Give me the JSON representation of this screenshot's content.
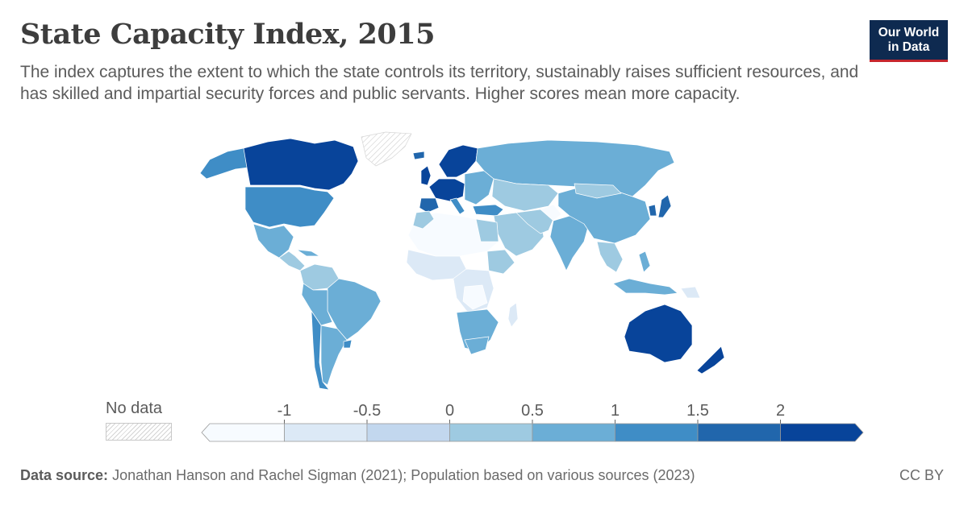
{
  "header": {
    "title": "State Capacity Index, 2015",
    "subtitle": "The index captures the extent to which the state controls its territory, sustainably raises sufficient resources, and has skilled and impartial security forces and public servants. Higher scores mean more capacity."
  },
  "logo": {
    "line1": "Our World",
    "line2": "in Data"
  },
  "legend": {
    "no_data_label": "No data",
    "ticks": [
      "-1",
      "-0.5",
      "0",
      "0.5",
      "1",
      "1.5",
      "2"
    ],
    "colors": [
      "#f7fbff",
      "#dce9f6",
      "#c2d7ee",
      "#9ecae1",
      "#6baed6",
      "#3f8dc6",
      "#2166ac",
      "#08449a"
    ]
  },
  "footer": {
    "source_label": "Data source:",
    "source_text": "Jonathan Hanson and Rachel Sigman (2021); Population based on various sources (2023)",
    "license": "CC BY"
  }
}
